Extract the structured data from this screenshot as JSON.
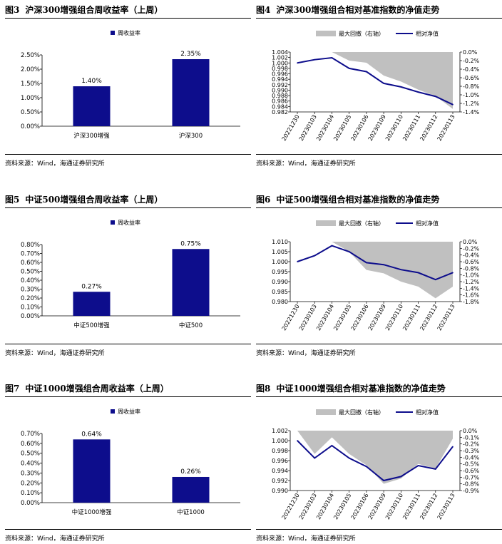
{
  "panels": [
    {
      "fig_no": "图3",
      "title": "沪深300增强组合周收益率（上周）",
      "source": "资料来源：Wind，海通证券研究所",
      "chart_data": {
        "type": "bar",
        "legend": "周收益率",
        "legend_position": "top-center",
        "categories": [
          "沪深300增强",
          "沪深300"
        ],
        "values": [
          0.014,
          0.0235
        ],
        "value_labels": [
          "1.40%",
          "2.35%"
        ],
        "yticks": [
          "0.00%",
          "0.50%",
          "1.00%",
          "1.50%",
          "2.00%",
          "2.50%"
        ],
        "ylim": [
          0,
          0.025
        ],
        "bar_color": "#0d0d8c"
      }
    },
    {
      "fig_no": "图4",
      "title": "沪深300增强组合相对基准指数的净值走势",
      "source": "资料来源：Wind，海通证券研究所",
      "chart_data": {
        "type": "line",
        "legend": [
          "最大回撤（右轴）",
          "相对净值"
        ],
        "legend_position": "top",
        "x": [
          "20221230",
          "20230103",
          "20230104",
          "20230105",
          "20230106",
          "20230109",
          "20230110",
          "20230111",
          "20230112",
          "20230113"
        ],
        "series": [
          {
            "name": "相对净值",
            "axis": "left",
            "values": [
              1.0,
              1.0012,
              1.0019,
              0.998,
              0.9968,
              0.9925,
              0.9912,
              0.9893,
              0.9877,
              0.9847
            ]
          },
          {
            "name": "最大回撤（右轴）",
            "axis": "right",
            "values": [
              0.0,
              0.0,
              0.0,
              -0.002,
              -0.0025,
              -0.0055,
              -0.0069,
              -0.0088,
              -0.0103,
              -0.0133
            ]
          }
        ],
        "y_left_ticks": [
          "1.004",
          "1.002",
          "1.000",
          "0.998",
          "0.996",
          "0.994",
          "0.992",
          "0.990",
          "0.988",
          "0.986",
          "0.984",
          "0.982"
        ],
        "y_left_lim": [
          0.982,
          1.004
        ],
        "y_right_ticks": [
          "0.0%",
          "-0.2%",
          "-0.4%",
          "-0.6%",
          "-0.8%",
          "-1.0%",
          "-1.2%",
          "-1.4%"
        ],
        "y_right_lim": [
          -0.014,
          0.0
        ],
        "line_color": "#0d0d8c",
        "area_color": "#c0c0c0"
      }
    },
    {
      "fig_no": "图5",
      "title": "中证500增强组合周收益率（上周）",
      "source": "资料来源：Wind，海通证券研究所",
      "chart_data": {
        "type": "bar",
        "legend": "周收益率",
        "legend_position": "top-center",
        "categories": [
          "中证500增强",
          "中证500"
        ],
        "values": [
          0.0027,
          0.0075
        ],
        "value_labels": [
          "0.27%",
          "0.75%"
        ],
        "yticks": [
          "0.00%",
          "0.10%",
          "0.20%",
          "0.30%",
          "0.40%",
          "0.50%",
          "0.60%",
          "0.70%",
          "0.80%"
        ],
        "ylim": [
          0,
          0.008
        ],
        "bar_color": "#0d0d8c"
      }
    },
    {
      "fig_no": "图6",
      "title": "中证500增强组合相对基准指数的净值走势",
      "source": "资料来源：Wind，海通证券研究所",
      "chart_data": {
        "type": "line",
        "legend": [
          "最大回撤（右轴）",
          "相对净值"
        ],
        "legend_position": "top",
        "x": [
          "20221230",
          "20230103",
          "20230104",
          "20230105",
          "20230106",
          "20230109",
          "20230110",
          "20230111",
          "20230112",
          "20230113"
        ],
        "series": [
          {
            "name": "相对净值",
            "axis": "left",
            "values": [
              1.0,
              1.003,
              1.008,
              1.005,
              0.9995,
              0.9985,
              0.996,
              0.9945,
              0.991,
              0.9945
            ]
          },
          {
            "name": "最大回撤（右轴）",
            "axis": "right",
            "values": [
              0.0,
              0.0,
              0.0,
              -0.003,
              -0.0085,
              -0.0095,
              -0.012,
              -0.0135,
              -0.017,
              -0.0135
            ]
          }
        ],
        "y_left_ticks": [
          "1.010",
          "1.005",
          "1.000",
          "0.995",
          "0.990",
          "0.985",
          "0.980"
        ],
        "y_left_lim": [
          0.98,
          1.01
        ],
        "y_right_ticks": [
          "0.0%",
          "-0.2%",
          "-0.4%",
          "-0.6%",
          "-0.8%",
          "-1.0%",
          "-1.2%",
          "-1.4%",
          "-1.6%",
          "-1.8%"
        ],
        "y_right_lim": [
          -0.018,
          0.0
        ],
        "line_color": "#0d0d8c",
        "area_color": "#c0c0c0"
      }
    },
    {
      "fig_no": "图7",
      "title": "中证1000增强组合周收益率（上周）",
      "source": "资料来源：Wind，海通证券研究所",
      "chart_data": {
        "type": "bar",
        "legend": "周收益率",
        "legend_position": "top-center",
        "categories": [
          "中证1000增强",
          "中证1000"
        ],
        "values": [
          0.0064,
          0.0026
        ],
        "value_labels": [
          "0.64%",
          "0.26%"
        ],
        "yticks": [
          "0.00%",
          "0.10%",
          "0.20%",
          "0.30%",
          "0.40%",
          "0.50%",
          "0.60%",
          "0.70%"
        ],
        "ylim": [
          0,
          0.007
        ],
        "bar_color": "#0d0d8c"
      }
    },
    {
      "fig_no": "图8",
      "title": "中证1000增强组合相对基准指数的净值走势",
      "source": "资料来源：Wind，海通证券研究所",
      "chart_data": {
        "type": "line",
        "legend": [
          "最大回撤（右轴）",
          "相对净值"
        ],
        "legend_position": "top",
        "x": [
          "20221230",
          "20230103",
          "20230104",
          "20230105",
          "20230106",
          "20230109",
          "20230110",
          "20230111",
          "20230112",
          "20230113"
        ],
        "series": [
          {
            "name": "相对净值",
            "axis": "left",
            "values": [
              1.0,
              0.9965,
              0.999,
              0.9965,
              0.9948,
              0.992,
              0.9928,
              0.995,
              0.9943,
              0.9988
            ]
          },
          {
            "name": "最大回撤（右轴）",
            "axis": "right",
            "values": [
              0.0,
              -0.0035,
              -0.001,
              -0.0035,
              -0.0052,
              -0.008,
              -0.0072,
              -0.005,
              -0.0057,
              -0.0012
            ]
          }
        ],
        "y_left_ticks": [
          "1.002",
          "1.000",
          "0.998",
          "0.996",
          "0.994",
          "0.992",
          "0.990"
        ],
        "y_left_lim": [
          0.99,
          1.002
        ],
        "y_right_ticks": [
          "0.0%",
          "-0.1%",
          "-0.2%",
          "-0.3%",
          "-0.4%",
          "-0.5%",
          "-0.6%",
          "-0.7%",
          "-0.8%",
          "-0.9%"
        ],
        "y_right_lim": [
          -0.009,
          0.0
        ],
        "line_color": "#0d0d8c",
        "area_color": "#c0c0c0"
      }
    }
  ]
}
